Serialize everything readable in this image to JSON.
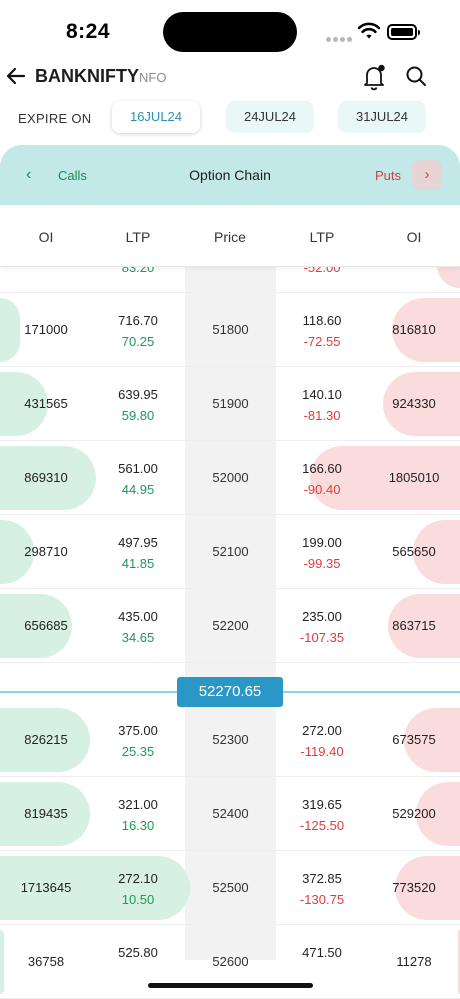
{
  "status": {
    "time": "8:24"
  },
  "header": {
    "title": "BANKNIFTY",
    "exchange": "NFO"
  },
  "expiry": {
    "label": "EXPIRE ON",
    "tabs": [
      {
        "label": "16JUL24",
        "active": true
      },
      {
        "label": "24JUL24",
        "active": false
      },
      {
        "label": "31JUL24",
        "active": false
      }
    ]
  },
  "chain_bar": {
    "calls": "Calls",
    "title": "Option Chain",
    "puts": "Puts"
  },
  "columns": {
    "call_oi": "OI",
    "call_ltp": "LTP",
    "price": "Price",
    "put_ltp": "LTP",
    "put_oi": "OI"
  },
  "spot_price": "52270.65",
  "rows": [
    {
      "call_oi": "",
      "call_ltp": "",
      "call_chg": "83.20",
      "strike": "",
      "put_ltp": "",
      "put_chg": "-52.00",
      "put_oi": "",
      "call_bar": 0.0,
      "put_bar": 0.15
    },
    {
      "call_oi": "171000",
      "call_ltp": "716.70",
      "call_chg": "70.25",
      "strike": "51800",
      "put_ltp": "118.60",
      "put_chg": "-72.55",
      "put_oi": "816810",
      "call_bar": 0.1,
      "put_bar": 0.45
    },
    {
      "call_oi": "431565",
      "call_ltp": "639.95",
      "call_chg": "59.80",
      "strike": "51900",
      "put_ltp": "140.10",
      "put_chg": "-81.30",
      "put_oi": "924330",
      "call_bar": 0.24,
      "put_bar": 0.51
    },
    {
      "call_oi": "869310",
      "call_ltp": "561.00",
      "call_chg": "44.95",
      "strike": "52000",
      "put_ltp": "166.60",
      "put_chg": "-90.40",
      "put_oi": "1805010",
      "call_bar": 0.48,
      "put_bar": 1.0
    },
    {
      "call_oi": "298710",
      "call_ltp": "497.95",
      "call_chg": "41.85",
      "strike": "52100",
      "put_ltp": "199.00",
      "put_chg": "-99.35",
      "put_oi": "565650",
      "call_bar": 0.17,
      "put_bar": 0.31
    },
    {
      "call_oi": "656685",
      "call_ltp": "435.00",
      "call_chg": "34.65",
      "strike": "52200",
      "put_ltp": "235.00",
      "put_chg": "-107.35",
      "put_oi": "863715",
      "call_bar": 0.36,
      "put_bar": 0.48
    },
    {
      "call_oi": "826215",
      "call_ltp": "375.00",
      "call_chg": "25.35",
      "strike": "52300",
      "put_ltp": "272.00",
      "put_chg": "-119.40",
      "put_oi": "673575",
      "call_bar": 0.45,
      "put_bar": 0.37
    },
    {
      "call_oi": "819435",
      "call_ltp": "321.00",
      "call_chg": "16.30",
      "strike": "52400",
      "put_ltp": "319.65",
      "put_chg": "-125.50",
      "put_oi": "529200",
      "call_bar": 0.45,
      "put_bar": 0.29
    },
    {
      "call_oi": "1713645",
      "call_ltp": "272.10",
      "call_chg": "10.50",
      "strike": "52500",
      "put_ltp": "372.85",
      "put_chg": "-130.75",
      "put_oi": "773520",
      "call_bar": 0.95,
      "put_bar": 0.43
    },
    {
      "call_oi": "36758",
      "call_ltp": "525.80",
      "call_chg": "",
      "strike": "52600",
      "put_ltp": "471.50",
      "put_chg": "",
      "put_oi": "11278",
      "call_bar": 0.02,
      "put_bar": 0.01
    }
  ]
}
